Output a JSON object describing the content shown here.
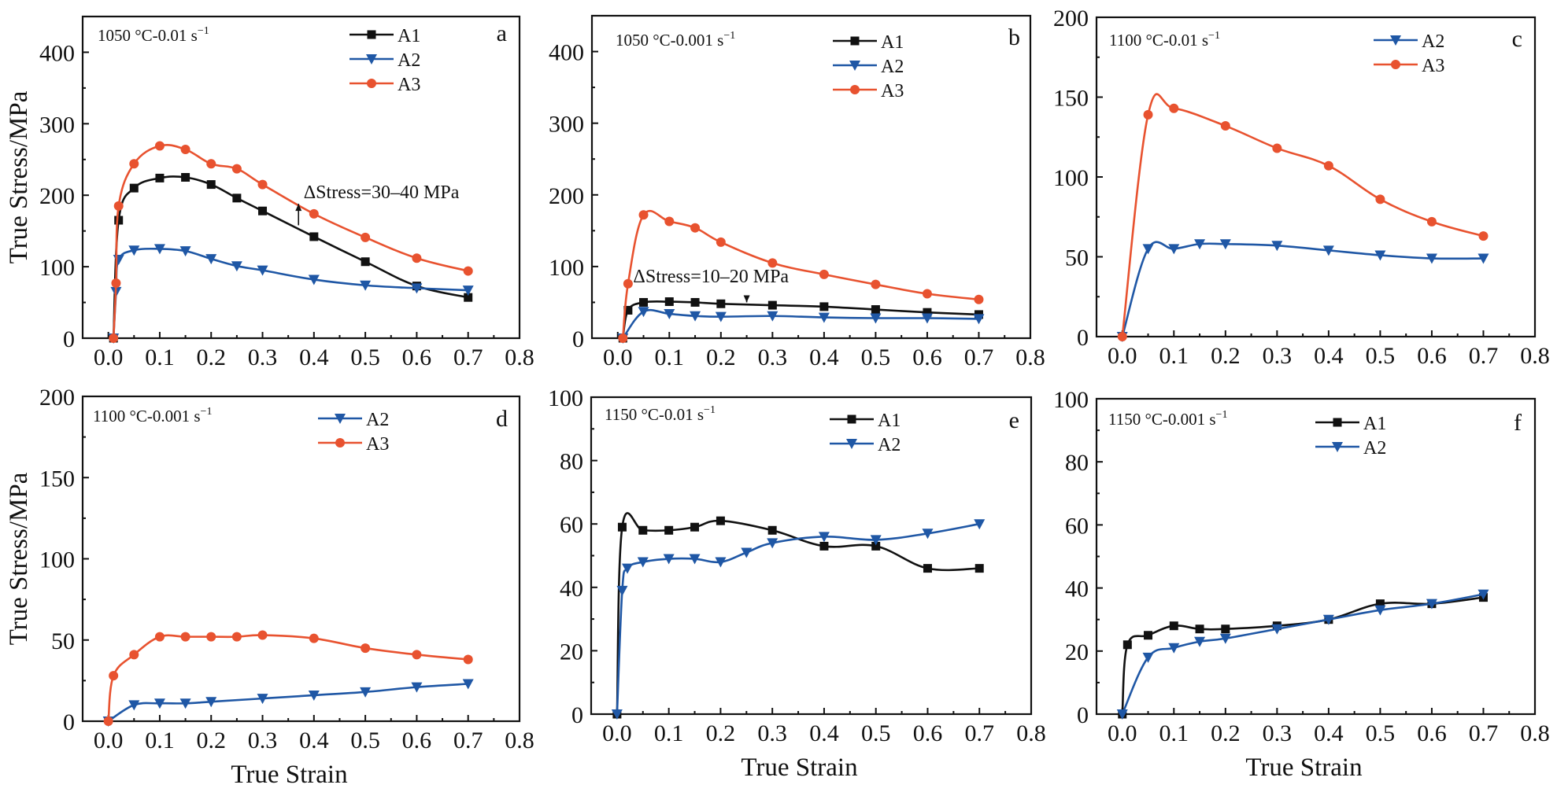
{
  "figure": {
    "ylabel": "True Stress/MPa",
    "xlabel": "True Strain"
  },
  "colors": {
    "A1": "#111111",
    "A2": "#1f57a5",
    "A3": "#e8522f",
    "axis": "#111111"
  },
  "chart_data": [
    {
      "type": "line",
      "panel": "a",
      "condition": "1050 °C-0.01 s",
      "condition_superscript": "−1",
      "xlim": [
        -0.05,
        0.8
      ],
      "ylim": [
        0,
        450
      ],
      "xticks": [
        0.0,
        0.1,
        0.2,
        0.3,
        0.4,
        0.5,
        0.6,
        0.7,
        0.8
      ],
      "xtick_labels": [
        "0.0",
        "0.1",
        "0.2",
        "0.3",
        "0.4",
        "0.5",
        "0.6",
        "0.7",
        "0.8"
      ],
      "yticks": [
        0,
        100,
        200,
        300,
        400
      ],
      "ytick_labels": [
        "0",
        "100",
        "200",
        "300",
        "400"
      ],
      "ylabel": "True Stress/MPa",
      "xlabel": "",
      "legend": [
        "A1",
        "A2",
        "A3"
      ],
      "legend_position": "top-center",
      "annotation": {
        "text": "ΔStress=30–40 MPa",
        "arrow_x": 0.37,
        "arrow_from": 158,
        "arrow_to": 188,
        "text_x": 0.38,
        "text_y": 196
      },
      "series": [
        {
          "name": "A1",
          "marker": "square",
          "x": [
            0.01,
            0.02,
            0.05,
            0.1,
            0.15,
            0.2,
            0.25,
            0.3,
            0.4,
            0.5,
            0.6,
            0.7
          ],
          "y": [
            0,
            165,
            210,
            224,
            225,
            215,
            196,
            178,
            142,
            107,
            73,
            57
          ]
        },
        {
          "name": "A2",
          "marker": "triangle-down",
          "x": [
            0.01,
            0.015,
            0.02,
            0.05,
            0.1,
            0.15,
            0.2,
            0.25,
            0.3,
            0.4,
            0.5,
            0.6,
            0.7
          ],
          "y": [
            0,
            65,
            110,
            123,
            125,
            122,
            111,
            101,
            95,
            82,
            74,
            70,
            67
          ]
        },
        {
          "name": "A3",
          "marker": "circle",
          "x": [
            0.01,
            0.015,
            0.02,
            0.05,
            0.1,
            0.15,
            0.2,
            0.25,
            0.3,
            0.4,
            0.5,
            0.6,
            0.7
          ],
          "y": [
            0,
            77,
            185,
            244,
            269,
            264,
            244,
            237,
            215,
            174,
            141,
            112,
            94
          ]
        }
      ]
    },
    {
      "type": "line",
      "panel": "b",
      "condition": "1050 °C-0.001 s",
      "condition_superscript": "−1",
      "xlim": [
        -0.05,
        0.8
      ],
      "ylim": [
        0,
        450
      ],
      "xticks": [
        0.0,
        0.1,
        0.2,
        0.3,
        0.4,
        0.5,
        0.6,
        0.7,
        0.8
      ],
      "xtick_labels": [
        "0.0",
        "0.1",
        "0.2",
        "0.3",
        "0.4",
        "0.5",
        "0.6",
        "0.7",
        "0.8"
      ],
      "yticks": [
        0,
        100,
        200,
        300,
        400
      ],
      "ytick_labels": [
        "0",
        "100",
        "200",
        "300",
        "400"
      ],
      "ylabel": "",
      "xlabel": "",
      "legend": [
        "A1",
        "A2",
        "A3"
      ],
      "legend_position": "top-right",
      "annotation": {
        "text": "ΔStress=10–20 MPa",
        "arrow_x": 0.25,
        "arrow_from": 58,
        "arrow_to": 50,
        "text_x": 0.03,
        "text_y": 78
      },
      "series": [
        {
          "name": "A1",
          "marker": "square",
          "x": [
            0.01,
            0.02,
            0.05,
            0.1,
            0.15,
            0.2,
            0.3,
            0.4,
            0.5,
            0.6,
            0.7
          ],
          "y": [
            0,
            39,
            50,
            51,
            50,
            48,
            46,
            44,
            40,
            36,
            33
          ]
        },
        {
          "name": "A2",
          "marker": "triangle-down",
          "x": [
            0.01,
            0.05,
            0.1,
            0.15,
            0.2,
            0.3,
            0.4,
            0.5,
            0.6,
            0.7
          ],
          "y": [
            0,
            37,
            34,
            31,
            30,
            31,
            29,
            28,
            28,
            27
          ]
        },
        {
          "name": "A3",
          "marker": "circle",
          "x": [
            0.01,
            0.02,
            0.05,
            0.1,
            0.15,
            0.2,
            0.3,
            0.4,
            0.5,
            0.6,
            0.7
          ],
          "y": [
            0,
            76,
            172,
            163,
            154,
            134,
            105,
            89,
            75,
            62,
            54
          ]
        }
      ]
    },
    {
      "type": "line",
      "panel": "c",
      "condition": "1100 °C-0.01 s",
      "condition_superscript": "−1",
      "xlim": [
        -0.05,
        0.8
      ],
      "ylim": [
        0,
        200
      ],
      "xticks": [
        0.0,
        0.1,
        0.2,
        0.3,
        0.4,
        0.5,
        0.6,
        0.7,
        0.8
      ],
      "xtick_labels": [
        "0.0",
        "0.1",
        "0.2",
        "0.3",
        "0.4",
        "0.5",
        "0.6",
        "0.7",
        "0.8"
      ],
      "yticks": [
        0,
        50,
        100,
        150,
        200
      ],
      "ytick_labels": [
        "0",
        "50",
        "100",
        "150",
        "200"
      ],
      "ylabel": "",
      "xlabel": "",
      "legend": [
        "A2",
        "A3"
      ],
      "legend_position": "top-right",
      "series": [
        {
          "name": "A2",
          "marker": "triangle-down",
          "x": [
            0,
            0.05,
            0.1,
            0.15,
            0.2,
            0.3,
            0.4,
            0.5,
            0.6,
            0.7
          ],
          "y": [
            0,
            55,
            55,
            58,
            58,
            57,
            54,
            51,
            49,
            49
          ]
        },
        {
          "name": "A3",
          "marker": "circle",
          "x": [
            0,
            0.05,
            0.1,
            0.2,
            0.3,
            0.4,
            0.5,
            0.6,
            0.7
          ],
          "y": [
            0,
            139,
            143,
            132,
            118,
            107,
            86,
            72,
            63
          ]
        }
      ]
    },
    {
      "type": "line",
      "panel": "d",
      "condition": "1100 °C-0.001 s",
      "condition_superscript": "−1",
      "xlim": [
        -0.05,
        0.8
      ],
      "ylim": [
        0,
        200
      ],
      "xticks": [
        0.0,
        0.1,
        0.2,
        0.3,
        0.4,
        0.5,
        0.6,
        0.7,
        0.8
      ],
      "xtick_labels": [
        "0.0",
        "0.1",
        "0.2",
        "0.3",
        "0.4",
        "0.5",
        "0.6",
        "0.7",
        "0.8"
      ],
      "yticks": [
        0,
        50,
        100,
        150,
        200
      ],
      "ytick_labels": [
        "0",
        "50",
        "100",
        "150",
        "200"
      ],
      "ylabel": "True Stress/MPa",
      "xlabel": "True Strain",
      "legend": [
        "A2",
        "A3"
      ],
      "legend_position": "top-center",
      "series": [
        {
          "name": "A2",
          "marker": "triangle-down",
          "x": [
            0,
            0.05,
            0.1,
            0.15,
            0.2,
            0.3,
            0.4,
            0.5,
            0.6,
            0.7
          ],
          "y": [
            0,
            10,
            11,
            11,
            12,
            14,
            16,
            18,
            21,
            23
          ]
        },
        {
          "name": "A3",
          "marker": "circle",
          "x": [
            0,
            0.01,
            0.05,
            0.1,
            0.15,
            0.2,
            0.25,
            0.3,
            0.4,
            0.5,
            0.6,
            0.7
          ],
          "y": [
            0,
            28,
            41,
            52,
            52,
            52,
            52,
            53,
            51,
            45,
            41,
            38
          ]
        }
      ]
    },
    {
      "type": "line",
      "panel": "e",
      "condition": "1150 °C-0.01 s",
      "condition_superscript": "−1",
      "xlim": [
        -0.05,
        0.8
      ],
      "ylim": [
        0,
        100
      ],
      "xticks": [
        0.0,
        0.1,
        0.2,
        0.3,
        0.4,
        0.5,
        0.6,
        0.7,
        0.8
      ],
      "xtick_labels": [
        "0.0",
        "0.1",
        "0.2",
        "0.3",
        "0.4",
        "0.5",
        "0.6",
        "0.7",
        "0.8"
      ],
      "yticks": [
        0,
        20,
        40,
        60,
        80,
        100
      ],
      "ytick_labels": [
        "0",
        "20",
        "40",
        "60",
        "80",
        "100"
      ],
      "ylabel": "",
      "xlabel": "True Strain",
      "legend": [
        "A1",
        "A2"
      ],
      "legend_position": "top-center",
      "series": [
        {
          "name": "A1",
          "marker": "square",
          "x": [
            0,
            0.01,
            0.05,
            0.1,
            0.15,
            0.2,
            0.3,
            0.4,
            0.5,
            0.6,
            0.7
          ],
          "y": [
            0,
            59,
            58,
            58,
            59,
            61,
            58,
            53,
            53,
            46,
            46
          ]
        },
        {
          "name": "A2",
          "marker": "triangle-down",
          "x": [
            0,
            0.01,
            0.02,
            0.05,
            0.1,
            0.15,
            0.2,
            0.25,
            0.3,
            0.4,
            0.5,
            0.6,
            0.7
          ],
          "y": [
            0,
            39,
            46,
            48,
            49,
            49,
            48,
            51,
            54,
            56,
            55,
            57,
            60
          ]
        }
      ]
    },
    {
      "type": "line",
      "panel": "f",
      "condition": "1150 °C-0.001 s",
      "condition_superscript": "−1",
      "xlim": [
        -0.05,
        0.8
      ],
      "ylim": [
        0,
        100
      ],
      "xticks": [
        0.0,
        0.1,
        0.2,
        0.3,
        0.4,
        0.5,
        0.6,
        0.7,
        0.8
      ],
      "xtick_labels": [
        "0.0",
        "0.1",
        "0.2",
        "0.3",
        "0.4",
        "0.5",
        "0.6",
        "0.7",
        "0.8"
      ],
      "yticks": [
        0,
        20,
        40,
        60,
        80,
        100
      ],
      "ytick_labels": [
        "0",
        "20",
        "40",
        "60",
        "80",
        "100"
      ],
      "ylabel": "",
      "xlabel": "True Strain",
      "legend": [
        "A1",
        "A2"
      ],
      "legend_position": "top-center",
      "series": [
        {
          "name": "A1",
          "marker": "square",
          "x": [
            0,
            0.01,
            0.05,
            0.1,
            0.15,
            0.2,
            0.3,
            0.4,
            0.5,
            0.6,
            0.7
          ],
          "y": [
            0,
            22,
            25,
            28,
            27,
            27,
            28,
            30,
            35,
            35,
            37
          ]
        },
        {
          "name": "A2",
          "marker": "triangle-down",
          "x": [
            0,
            0.05,
            0.1,
            0.15,
            0.2,
            0.3,
            0.4,
            0.5,
            0.6,
            0.7
          ],
          "y": [
            0,
            18,
            21,
            23,
            24,
            27,
            30,
            33,
            35,
            38
          ]
        }
      ]
    }
  ]
}
